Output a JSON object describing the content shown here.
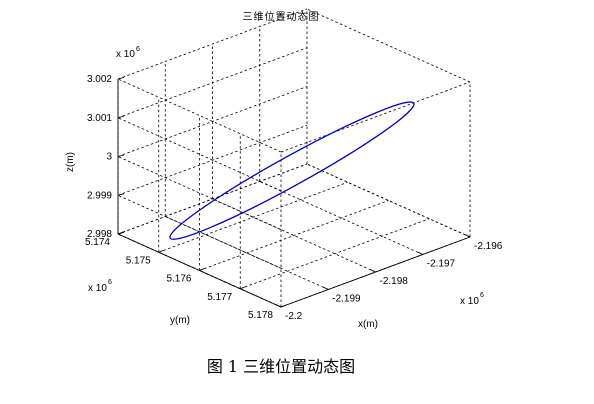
{
  "chart_data": {
    "type": "line3d",
    "title": "三维位置动态图",
    "xlabel": "x(m)",
    "ylabel": "y(m)",
    "zlabel": "z(m)",
    "x_exponent_label": "x 10",
    "x_exponent_power": "6",
    "y_exponent_label": "x 10",
    "y_exponent_power": "6",
    "z_exponent_label": "x 10",
    "z_exponent_power": "6",
    "x_ticks": [
      "-2.2",
      "-2.199",
      "-2.198",
      "-2.197",
      "-2.196"
    ],
    "y_ticks": [
      "5.174",
      "5.175",
      "5.176",
      "5.177",
      "5.178"
    ],
    "z_ticks": [
      "2.998",
      "2.999",
      "3",
      "3.001",
      "3.002"
    ],
    "xlim": [
      -2.2,
      -2.196
    ],
    "ylim": [
      5.174,
      5.178
    ],
    "zlim": [
      2.998,
      3.002
    ],
    "grid": true,
    "series_color": "#0000c0",
    "trajectory": {
      "shape": "closed ellipse",
      "start": {
        "x": -2.1995,
        "y": 5.1773,
        "z": 2.998
      },
      "end": {
        "x": -2.1965,
        "y": 5.1748,
        "z": 3.0013
      }
    }
  },
  "caption": "图 1  三维位置动态图"
}
